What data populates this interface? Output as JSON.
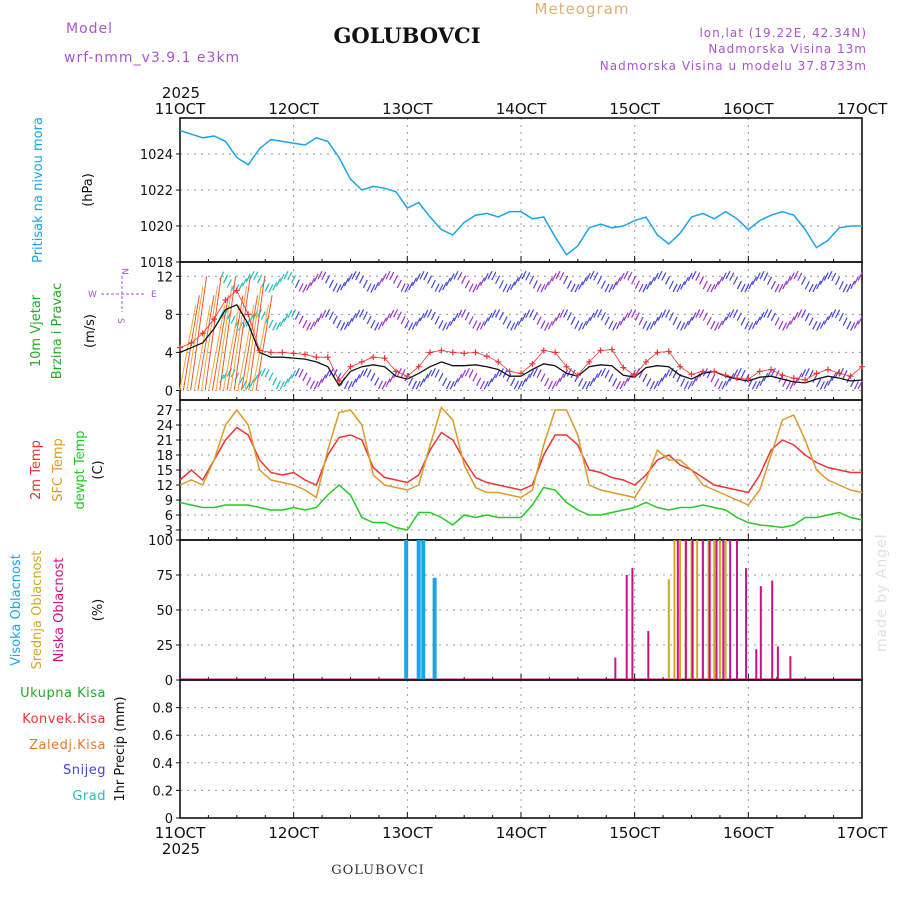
{
  "header": {
    "model_label": "Model",
    "model_name": "wrf-nmm_v3.9.1  e3km",
    "station": "GOLUBOVCI",
    "subtitle": "Meteogram",
    "coords": "lon,lat (19.22E, 42.34N)",
    "elevation": "Nadmorska Visina 13m",
    "model_elevation": "Nadmorska Visina u modelu 37.8733m",
    "year": "2025",
    "credit": "made by Angel",
    "footer": "GOLUBOVCI"
  },
  "colors": {
    "pressure": "#1aa6e6",
    "temp2m": "#ee3333",
    "sfc": "#dd9a2a",
    "dew": "#22cc22",
    "wind_label": "#22aa22",
    "high_cloud": "#1aa6e6",
    "mid_cloud": "#ccaa22",
    "low_cloud": "#cc1188",
    "total_precip": "#22aa22",
    "conv_precip": "#ee3333",
    "frozen_precip": "#ee7722",
    "snow": "#4444dd",
    "hail": "#22bbbb",
    "purple_text": "#aa55cc"
  },
  "x_axis": {
    "tick_labels": [
      "11OCT",
      "12OCT",
      "13OCT",
      "14OCT",
      "15OCT",
      "16OCT",
      "17OCT"
    ]
  },
  "chart_data": [
    {
      "type": "line",
      "panel": "pressure",
      "ylabel_lines": [
        "Pritisak na nivou mora"
      ],
      "unit": "(hPa)",
      "ylim": [
        1018,
        1026
      ],
      "yticks": [
        1018,
        1020,
        1022,
        1024
      ],
      "x": [
        0,
        0.1,
        0.2,
        0.3,
        0.4,
        0.5,
        0.6,
        0.7,
        0.8,
        0.9,
        1.0,
        1.1,
        1.2,
        1.3,
        1.4,
        1.5,
        1.6,
        1.7,
        1.8,
        1.9,
        2.0,
        2.1,
        2.2,
        2.3,
        2.4,
        2.5,
        2.6,
        2.7,
        2.8,
        2.9,
        3.0,
        3.1,
        3.2,
        3.3,
        3.4,
        3.5,
        3.6,
        3.7,
        3.8,
        3.9,
        4.0,
        4.1,
        4.2,
        4.3,
        4.4,
        4.5,
        4.6,
        4.7,
        4.8,
        4.9,
        5.0,
        5.1,
        5.2,
        5.3,
        5.4,
        5.5,
        5.6,
        5.7,
        5.8,
        5.9,
        6.0
      ],
      "series": [
        {
          "name": "Pritisak",
          "values": [
            1025.3,
            1025.1,
            1024.9,
            1025.0,
            1024.7,
            1023.8,
            1023.4,
            1024.3,
            1024.8,
            1024.7,
            1024.6,
            1024.5,
            1024.9,
            1024.7,
            1023.8,
            1022.6,
            1022.0,
            1022.2,
            1022.1,
            1021.9,
            1021.0,
            1021.3,
            1020.5,
            1019.8,
            1019.5,
            1020.2,
            1020.6,
            1020.7,
            1020.5,
            1020.8,
            1020.8,
            1020.4,
            1020.5,
            1019.4,
            1018.4,
            1018.9,
            1019.9,
            1020.1,
            1019.9,
            1020.0,
            1020.3,
            1020.5,
            1019.5,
            1019.0,
            1019.6,
            1020.5,
            1020.7,
            1020.4,
            1020.8,
            1020.4,
            1019.8,
            1020.3,
            1020.6,
            1020.8,
            1020.6,
            1019.8,
            1018.8,
            1019.2,
            1019.9,
            1020.0,
            1020.0
          ]
        }
      ]
    },
    {
      "type": "line",
      "panel": "wind",
      "ylabel_lines": [
        "10m Vjetar",
        "Brzina i Pravac"
      ],
      "unit": "(m/s)",
      "compass": {
        "n": "N",
        "s": "S",
        "w": "W",
        "e": "E"
      },
      "ylim": [
        -1,
        13.5
      ],
      "yticks": [
        0,
        4,
        8,
        12
      ],
      "x": [
        0,
        0.1,
        0.2,
        0.3,
        0.4,
        0.5,
        0.6,
        0.7,
        0.8,
        0.9,
        1.0,
        1.1,
        1.2,
        1.3,
        1.4,
        1.5,
        1.6,
        1.7,
        1.8,
        1.9,
        2.0,
        2.1,
        2.2,
        2.3,
        2.4,
        2.5,
        2.6,
        2.7,
        2.8,
        2.9,
        3.0,
        3.1,
        3.2,
        3.3,
        3.4,
        3.5,
        3.6,
        3.7,
        3.8,
        3.9,
        4.0,
        4.1,
        4.2,
        4.3,
        4.4,
        4.5,
        4.6,
        4.7,
        4.8,
        4.9,
        5.0,
        5.1,
        5.2,
        5.3,
        5.4,
        5.5,
        5.6,
        5.7,
        5.8,
        5.9,
        6.0
      ],
      "series": [
        {
          "name": "Brzina",
          "values": [
            4.0,
            4.5,
            5.0,
            6.5,
            8.5,
            9.0,
            7.0,
            4.0,
            3.5,
            3.5,
            3.4,
            3.3,
            3.0,
            2.5,
            0.5,
            2.0,
            2.5,
            2.7,
            2.5,
            1.5,
            1.2,
            1.8,
            2.5,
            3.0,
            2.6,
            2.6,
            2.7,
            2.5,
            2.2,
            1.5,
            1.5,
            2.2,
            2.8,
            2.6,
            1.8,
            1.5,
            2.5,
            2.7,
            2.6,
            1.6,
            1.4,
            2.4,
            2.6,
            2.5,
            1.6,
            1.2,
            1.8,
            2.0,
            1.5,
            1.2,
            1.0,
            1.4,
            1.5,
            1.2,
            0.9,
            0.8,
            1.2,
            1.5,
            1.3,
            1.0,
            1.1
          ]
        },
        {
          "name": "Udari",
          "values": [
            4.5,
            5.0,
            6.0,
            7.5,
            9.5,
            10.5,
            8.0,
            4.2,
            4.0,
            4.0,
            3.9,
            3.8,
            3.5,
            3.5,
            1.0,
            2.5,
            3.0,
            3.5,
            3.4,
            2.0,
            1.5,
            2.5,
            4.0,
            4.2,
            4.0,
            3.9,
            4.0,
            3.6,
            3.0,
            2.0,
            1.8,
            2.8,
            4.2,
            4.0,
            2.5,
            1.6,
            3.0,
            4.2,
            4.3,
            2.4,
            1.6,
            3.0,
            4.0,
            4.1,
            2.5,
            1.7,
            2.0,
            2.0,
            1.6,
            1.3,
            1.2,
            2.0,
            2.2,
            1.6,
            1.3,
            1.1,
            1.8,
            2.2,
            1.8,
            1.5,
            2.5
          ]
        }
      ]
    },
    {
      "type": "line",
      "panel": "temperature",
      "ylabel_lines": [
        "2m Temp",
        "SFC Temp",
        "dewpt Temp"
      ],
      "unit": "(C)",
      "ylim": [
        1,
        29
      ],
      "yticks": [
        3,
        6,
        9,
        12,
        15,
        18,
        21,
        24,
        27
      ],
      "x": [
        0,
        0.1,
        0.2,
        0.3,
        0.4,
        0.5,
        0.6,
        0.7,
        0.8,
        0.9,
        1.0,
        1.1,
        1.2,
        1.3,
        1.4,
        1.5,
        1.6,
        1.7,
        1.8,
        1.9,
        2.0,
        2.1,
        2.2,
        2.3,
        2.4,
        2.5,
        2.6,
        2.7,
        2.8,
        2.9,
        3.0,
        3.1,
        3.2,
        3.3,
        3.4,
        3.5,
        3.6,
        3.7,
        3.8,
        3.9,
        4.0,
        4.1,
        4.2,
        4.3,
        4.4,
        4.5,
        4.6,
        4.7,
        4.8,
        4.9,
        5.0,
        5.1,
        5.2,
        5.3,
        5.4,
        5.5,
        5.6,
        5.7,
        5.8,
        5.9,
        6.0
      ],
      "series": [
        {
          "name": "2m Temp",
          "values": [
            13,
            15,
            13,
            17,
            21,
            23.5,
            22,
            17,
            14.5,
            14,
            14.5,
            13,
            12,
            18,
            21.5,
            22,
            21,
            15.5,
            13.5,
            13,
            12.5,
            14,
            19,
            22.5,
            21,
            17,
            13.5,
            12.5,
            12,
            11.5,
            11,
            12,
            18,
            22,
            22,
            20,
            15,
            14.5,
            13.5,
            13,
            12,
            14,
            17,
            18,
            16,
            15,
            13.5,
            12,
            11.5,
            11,
            10.5,
            14,
            19,
            21,
            20,
            18,
            16.5,
            15.5,
            15,
            14.5,
            14.5
          ]
        },
        {
          "name": "SFC Temp",
          "values": [
            12,
            13,
            12,
            17,
            24,
            27,
            24,
            15,
            13,
            12.5,
            12,
            11,
            9.5,
            19,
            26.5,
            27,
            24,
            14,
            12,
            11.5,
            11,
            12,
            20,
            27.5,
            25,
            16,
            11.5,
            10.5,
            10.5,
            10,
            9.5,
            11,
            20,
            27,
            27,
            22,
            12,
            11,
            10.5,
            10,
            9.5,
            13,
            19,
            17,
            17,
            15,
            12,
            11,
            10,
            9,
            8,
            11,
            18,
            25,
            26,
            21,
            15,
            13,
            12,
            11,
            10.5
          ]
        },
        {
          "name": "dewpt Temp",
          "values": [
            8.5,
            8,
            7.5,
            7.5,
            8,
            8,
            8,
            7.5,
            7,
            7,
            7.5,
            7,
            7.5,
            10,
            12,
            10,
            5.5,
            4.5,
            4.5,
            3.5,
            3,
            6.5,
            6.5,
            5.5,
            4,
            6,
            5.5,
            6,
            5.5,
            5.5,
            5.5,
            8,
            11.5,
            11,
            8.5,
            7,
            6,
            6,
            6.5,
            7,
            7.5,
            8.5,
            7.5,
            7,
            7.5,
            7.5,
            8,
            7.5,
            7,
            5.5,
            4.5,
            4,
            3.8,
            3.5,
            4,
            5.5,
            5.5,
            6,
            6.5,
            5.5,
            5
          ]
        }
      ]
    },
    {
      "type": "bar",
      "panel": "clouds",
      "ylabel_lines": [
        "Visoka Oblacnost",
        "Srednja Oblacnost",
        "Niska Oblacnost"
      ],
      "unit": "(%)",
      "ylim": [
        0,
        100
      ],
      "yticks": [
        0,
        25,
        50,
        75,
        100
      ],
      "series": [
        {
          "name": "Visoka Oblacnost",
          "x": [
            1.99,
            2.1,
            2.14,
            2.24
          ],
          "values": [
            100,
            100,
            100,
            73
          ]
        },
        {
          "name": "Srednja Oblacnost",
          "x": [
            4.3,
            4.35,
            4.4,
            4.45,
            4.5,
            4.55,
            4.6,
            4.65,
            4.7,
            4.75,
            4.8
          ],
          "values": [
            72,
            100,
            100,
            100,
            100,
            100,
            100,
            100,
            100,
            100,
            100
          ]
        },
        {
          "name": "Niska Oblacnost",
          "x": [
            3.83,
            3.93,
            3.98,
            4.12,
            4.38,
            4.45,
            4.51,
            4.6,
            4.66,
            4.72,
            4.78,
            4.84,
            4.9,
            4.98,
            5.07,
            5.11,
            5.21,
            5.26,
            5.37
          ],
          "values": [
            16,
            75,
            80,
            35,
            100,
            100,
            100,
            100,
            100,
            100,
            100,
            100,
            100,
            80,
            22,
            67,
            71,
            24,
            17
          ]
        }
      ]
    },
    {
      "type": "bar",
      "panel": "precip",
      "ylabel_lines": [
        "Ukupna Kisa",
        "Konvek.Kisa",
        "Zaledj.Kisa",
        "Snijeg",
        "Grad"
      ],
      "unit": "1hr Precip (mm)",
      "ylim": [
        0,
        1
      ],
      "yticks": [
        0,
        0.2,
        0.4,
        0.6,
        0.8
      ],
      "series": []
    }
  ]
}
